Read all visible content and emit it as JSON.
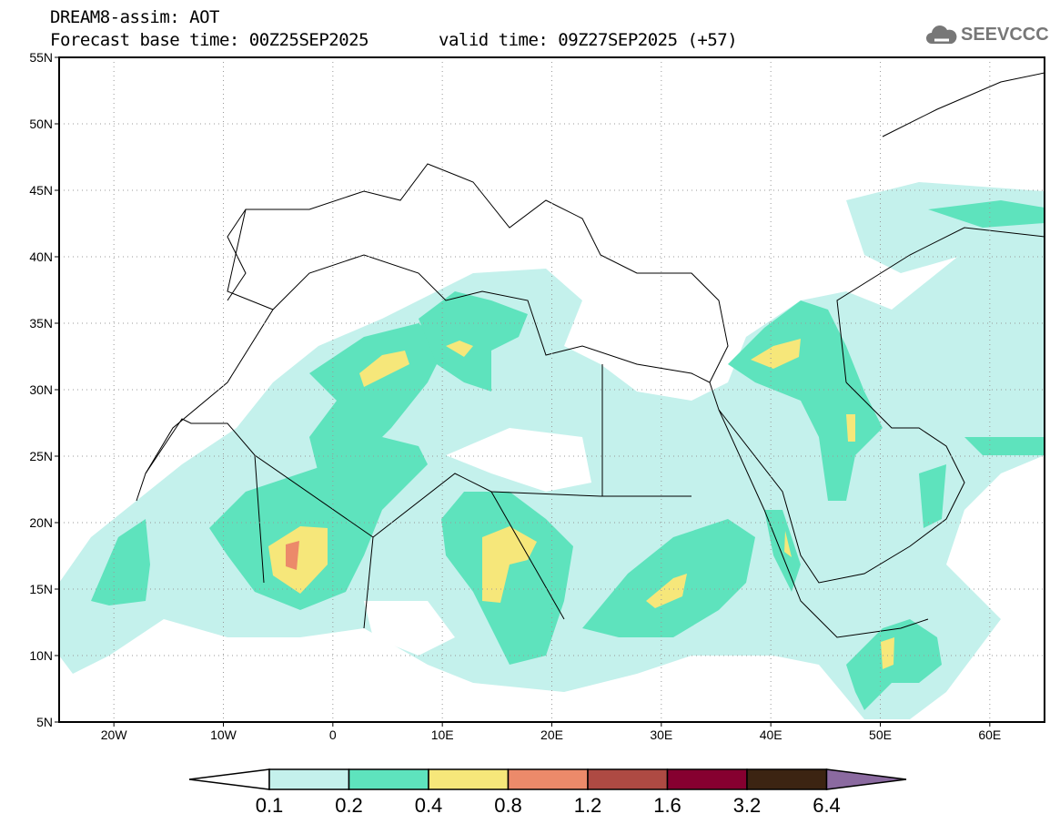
{
  "header": {
    "title": "DREAM8-assim: AOT",
    "base_time": "Forecast base time: 00Z25SEP2025",
    "valid_time": "valid time: 09Z27SEP2025 (+57)"
  },
  "logo": {
    "text": "SEEVCCC",
    "icon": "cloud-icon"
  },
  "map": {
    "lon_range": [
      -25,
      65
    ],
    "lat_range": [
      5,
      55
    ],
    "lon_ticks": [
      {
        "v": -20,
        "label": "20W"
      },
      {
        "v": -10,
        "label": "10W"
      },
      {
        "v": 0,
        "label": "0"
      },
      {
        "v": 10,
        "label": "10E"
      },
      {
        "v": 20,
        "label": "20E"
      },
      {
        "v": 30,
        "label": "30E"
      },
      {
        "v": 40,
        "label": "40E"
      },
      {
        "v": 50,
        "label": "50E"
      },
      {
        "v": 60,
        "label": "60E"
      }
    ],
    "lat_ticks": [
      {
        "v": 5,
        "label": "5N"
      },
      {
        "v": 10,
        "label": "10N"
      },
      {
        "v": 15,
        "label": "15N"
      },
      {
        "v": 20,
        "label": "20N"
      },
      {
        "v": 25,
        "label": "25N"
      },
      {
        "v": 30,
        "label": "30N"
      },
      {
        "v": 35,
        "label": "35N"
      },
      {
        "v": 40,
        "label": "40N"
      },
      {
        "v": 45,
        "label": "45N"
      },
      {
        "v": 50,
        "label": "50N"
      },
      {
        "v": 55,
        "label": "55N"
      }
    ]
  },
  "colorbar": {
    "labels": [
      "0.1",
      "0.2",
      "0.4",
      "0.8",
      "1.2",
      "1.6",
      "3.2",
      "6.4"
    ],
    "colors": [
      "#ffffff",
      "#c4f1ec",
      "#5ee3bd",
      "#f6e77a",
      "#ec8a6a",
      "#ae4a43",
      "#860030",
      "#3c2412",
      "#8b6aa0"
    ]
  }
}
